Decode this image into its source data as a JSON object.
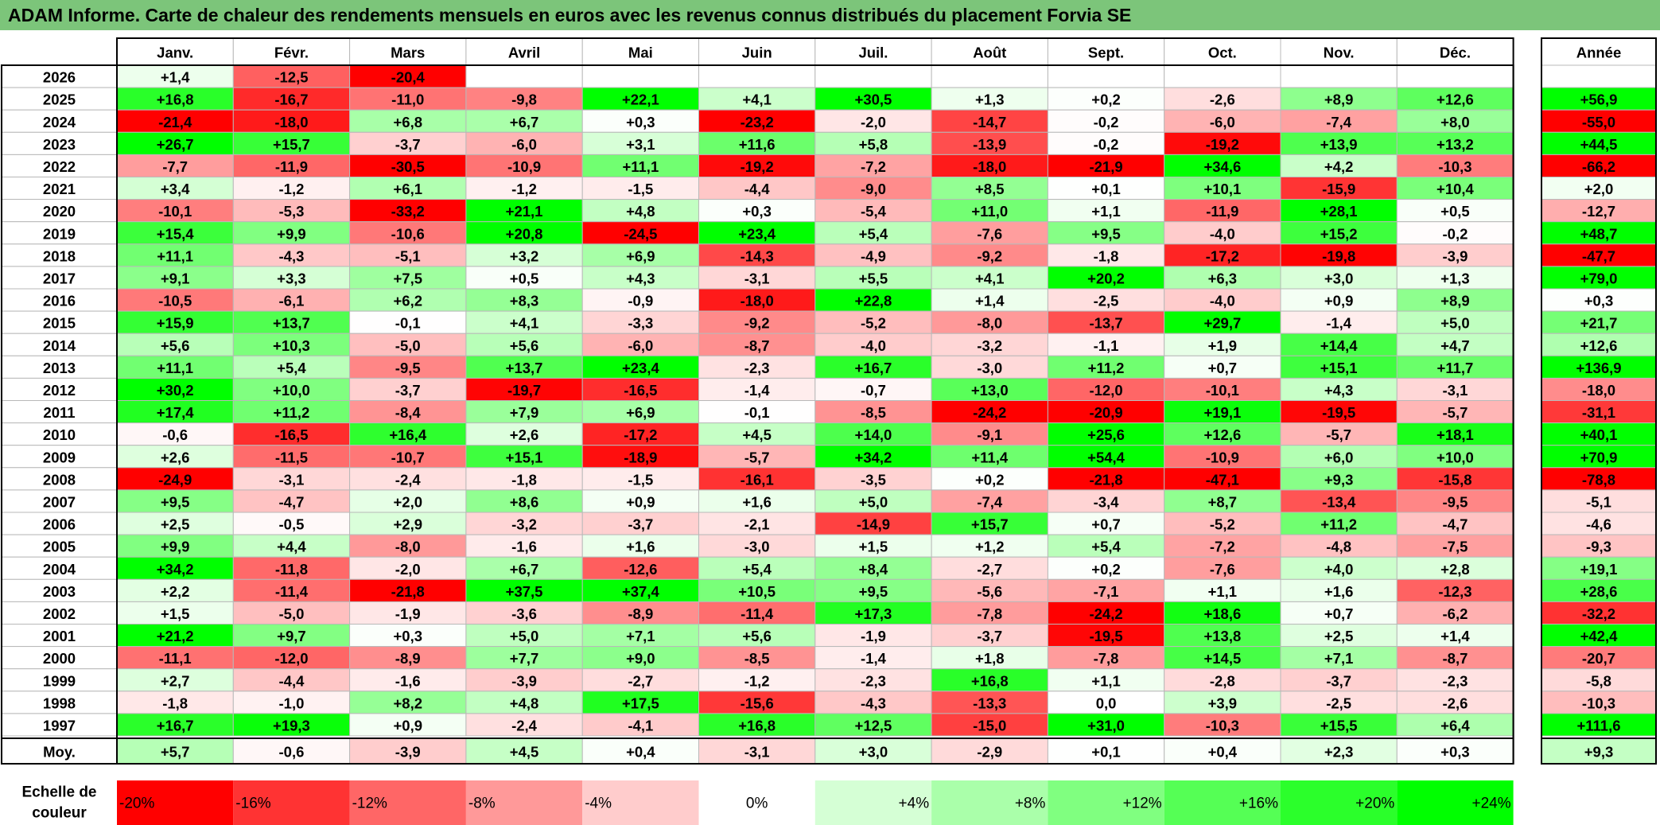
{
  "title": "ADAM Informe. Carte de chaleur des rendements mensuels en euros avec les revenus connus distribués du placement Forvia SE",
  "chart_data": {
    "type": "heatmap",
    "columns": [
      "Janv.",
      "Févr.",
      "Mars",
      "Avril",
      "Mai",
      "Juin",
      "Juil.",
      "Août",
      "Sept.",
      "Oct.",
      "Nov.",
      "Déc."
    ],
    "annual_header": "Année",
    "rows": [
      {
        "year": "2026",
        "months": [
          "+1,4",
          "-12,5",
          "-20,4",
          "",
          "",
          "",
          "",
          "",
          "",
          "",
          "",
          ""
        ],
        "annual": ""
      },
      {
        "year": "2025",
        "months": [
          "+16,8",
          "-16,7",
          "-11,0",
          "-9,8",
          "+22,1",
          "+4,1",
          "+30,5",
          "+1,3",
          "+0,2",
          "-2,6",
          "+8,9",
          "+12,6"
        ],
        "annual": "+56,9"
      },
      {
        "year": "2024",
        "months": [
          "-21,4",
          "-18,0",
          "+6,8",
          "+6,7",
          "+0,3",
          "-23,2",
          "-2,0",
          "-14,7",
          "-0,2",
          "-6,0",
          "-7,4",
          "+8,0"
        ],
        "annual": "-55,0"
      },
      {
        "year": "2023",
        "months": [
          "+26,7",
          "+15,7",
          "-3,7",
          "-6,0",
          "+3,1",
          "+11,6",
          "+5,8",
          "-13,9",
          "-0,2",
          "-19,2",
          "+13,9",
          "+13,2"
        ],
        "annual": "+44,5"
      },
      {
        "year": "2022",
        "months": [
          "-7,7",
          "-11,9",
          "-30,5",
          "-10,9",
          "+11,1",
          "-19,2",
          "-7,2",
          "-18,0",
          "-21,9",
          "+34,6",
          "+4,2",
          "-10,3"
        ],
        "annual": "-66,2"
      },
      {
        "year": "2021",
        "months": [
          "+3,4",
          "-1,2",
          "+6,1",
          "-1,2",
          "-1,5",
          "-4,4",
          "-9,0",
          "+8,5",
          "+0,1",
          "+10,1",
          "-15,9",
          "+10,4"
        ],
        "annual": "+2,0"
      },
      {
        "year": "2020",
        "months": [
          "-10,1",
          "-5,3",
          "-33,2",
          "+21,1",
          "+4,8",
          "+0,3",
          "-5,4",
          "+11,0",
          "+1,1",
          "-11,9",
          "+28,1",
          "+0,5"
        ],
        "annual": "-12,7"
      },
      {
        "year": "2019",
        "months": [
          "+15,4",
          "+9,9",
          "-10,6",
          "+20,8",
          "-24,5",
          "+23,4",
          "+5,4",
          "-7,6",
          "+9,5",
          "-4,0",
          "+15,2",
          "-0,2"
        ],
        "annual": "+48,7"
      },
      {
        "year": "2018",
        "months": [
          "+11,1",
          "-4,3",
          "-5,1",
          "+3,2",
          "+6,9",
          "-14,3",
          "-4,9",
          "-9,2",
          "-1,8",
          "-17,2",
          "-19,8",
          "-3,9"
        ],
        "annual": "-47,7"
      },
      {
        "year": "2017",
        "months": [
          "+9,1",
          "+3,3",
          "+7,5",
          "+0,5",
          "+4,3",
          "-3,1",
          "+5,5",
          "+4,1",
          "+20,2",
          "+6,3",
          "+3,0",
          "+1,3"
        ],
        "annual": "+79,0"
      },
      {
        "year": "2016",
        "months": [
          "-10,5",
          "-6,1",
          "+6,2",
          "+8,3",
          "-0,9",
          "-18,0",
          "+22,8",
          "+1,4",
          "-2,5",
          "-4,0",
          "+0,9",
          "+8,9"
        ],
        "annual": "+0,3"
      },
      {
        "year": "2015",
        "months": [
          "+15,9",
          "+13,7",
          "-0,1",
          "+4,1",
          "-3,3",
          "-9,2",
          "-5,2",
          "-8,0",
          "-13,7",
          "+29,7",
          "-1,4",
          "+5,0"
        ],
        "annual": "+21,7"
      },
      {
        "year": "2014",
        "months": [
          "+5,6",
          "+10,3",
          "-5,0",
          "+5,6",
          "-6,0",
          "-8,7",
          "-4,0",
          "-3,2",
          "-1,1",
          "+1,9",
          "+14,4",
          "+4,7"
        ],
        "annual": "+12,6"
      },
      {
        "year": "2013",
        "months": [
          "+11,1",
          "+5,4",
          "-9,5",
          "+13,7",
          "+23,4",
          "-2,3",
          "+16,7",
          "-3,0",
          "+11,2",
          "+0,7",
          "+15,1",
          "+11,7"
        ],
        "annual": "+136,9"
      },
      {
        "year": "2012",
        "months": [
          "+30,2",
          "+10,0",
          "-3,7",
          "-19,7",
          "-16,5",
          "-1,4",
          "-0,7",
          "+13,0",
          "-12,0",
          "-10,1",
          "+4,3",
          "-3,1"
        ],
        "annual": "-18,0"
      },
      {
        "year": "2011",
        "months": [
          "+17,4",
          "+11,2",
          "-8,4",
          "+7,9",
          "+6,9",
          "-0,1",
          "-8,5",
          "-24,2",
          "-20,9",
          "+19,1",
          "-19,5",
          "-5,7"
        ],
        "annual": "-31,1"
      },
      {
        "year": "2010",
        "months": [
          "-0,6",
          "-16,5",
          "+16,4",
          "+2,6",
          "-17,2",
          "+4,5",
          "+14,0",
          "-9,1",
          "+25,6",
          "+12,6",
          "-5,7",
          "+18,1"
        ],
        "annual": "+40,1"
      },
      {
        "year": "2009",
        "months": [
          "+2,6",
          "-11,5",
          "-10,7",
          "+15,1",
          "-18,9",
          "-5,7",
          "+34,2",
          "+11,4",
          "+54,4",
          "-10,9",
          "+6,0",
          "+10,0"
        ],
        "annual": "+70,9"
      },
      {
        "year": "2008",
        "months": [
          "-24,9",
          "-3,1",
          "-2,4",
          "-1,8",
          "-1,5",
          "-16,1",
          "-3,5",
          "+0,2",
          "-21,8",
          "-47,1",
          "+9,3",
          "-15,8"
        ],
        "annual": "-78,8"
      },
      {
        "year": "2007",
        "months": [
          "+9,5",
          "-4,7",
          "+2,0",
          "+8,6",
          "+0,9",
          "+1,6",
          "+5,0",
          "-7,4",
          "-3,4",
          "+8,7",
          "-13,4",
          "-9,5"
        ],
        "annual": "-5,1"
      },
      {
        "year": "2006",
        "months": [
          "+2,5",
          "-0,5",
          "+2,9",
          "-3,2",
          "-3,7",
          "-2,1",
          "-14,9",
          "+15,7",
          "+0,7",
          "-5,2",
          "+11,2",
          "-4,7"
        ],
        "annual": "-4,6"
      },
      {
        "year": "2005",
        "months": [
          "+9,9",
          "+4,4",
          "-8,0",
          "-1,6",
          "+1,6",
          "-3,0",
          "+1,5",
          "+1,2",
          "+5,4",
          "-7,2",
          "-4,8",
          "-7,5"
        ],
        "annual": "-9,3"
      },
      {
        "year": "2004",
        "months": [
          "+34,2",
          "-11,8",
          "-2,0",
          "+6,7",
          "-12,6",
          "+5,4",
          "+8,4",
          "-2,7",
          "+0,2",
          "-7,6",
          "+4,0",
          "+2,8"
        ],
        "annual": "+19,1"
      },
      {
        "year": "2003",
        "months": [
          "+2,2",
          "-11,4",
          "-21,8",
          "+37,5",
          "+37,4",
          "+10,5",
          "+9,5",
          "-5,6",
          "-7,1",
          "+1,1",
          "+1,6",
          "-12,3"
        ],
        "annual": "+28,6"
      },
      {
        "year": "2002",
        "months": [
          "+1,5",
          "-5,0",
          "-1,9",
          "-3,6",
          "-8,9",
          "-11,4",
          "+17,3",
          "-7,8",
          "-24,2",
          "+18,6",
          "+0,7",
          "-6,2"
        ],
        "annual": "-32,2"
      },
      {
        "year": "2001",
        "months": [
          "+21,2",
          "+9,7",
          "+0,3",
          "+5,0",
          "+7,1",
          "+5,6",
          "-1,9",
          "-3,7",
          "-19,5",
          "+13,8",
          "+2,5",
          "+1,4"
        ],
        "annual": "+42,4"
      },
      {
        "year": "2000",
        "months": [
          "-11,1",
          "-12,0",
          "-8,9",
          "+7,7",
          "+9,0",
          "-8,5",
          "-1,4",
          "+1,8",
          "-7,8",
          "+14,5",
          "+7,1",
          "-8,7"
        ],
        "annual": "-20,7"
      },
      {
        "year": "1999",
        "months": [
          "+2,7",
          "-4,4",
          "-1,6",
          "-3,9",
          "-2,7",
          "-1,2",
          "-2,3",
          "+16,8",
          "+1,1",
          "-2,8",
          "-3,7",
          "-2,3"
        ],
        "annual": "-5,8"
      },
      {
        "year": "1998",
        "months": [
          "-1,8",
          "-1,0",
          "+8,2",
          "+4,8",
          "+17,5",
          "-15,6",
          "-4,3",
          "-13,3",
          "0,0",
          "+3,9",
          "-2,5",
          "-2,6"
        ],
        "annual": "-10,3"
      },
      {
        "year": "1997",
        "months": [
          "+16,7",
          "+19,3",
          "+0,9",
          "-2,4",
          "-4,1",
          "+16,8",
          "+12,5",
          "-15,0",
          "+31,0",
          "-10,3",
          "+15,5",
          "+6,4"
        ],
        "annual": "+111,6"
      }
    ],
    "average": {
      "label": "Moy.",
      "months": [
        "+5,7",
        "-0,6",
        "-3,9",
        "+4,5",
        "+0,4",
        "-3,1",
        "+3,0",
        "-2,9",
        "+0,1",
        "+0,4",
        "+2,3",
        "+0,3"
      ],
      "annual": "+9,3"
    },
    "scale": {
      "label_line1": "Echelle de",
      "label_line2": "couleur",
      "steps": [
        "-20%",
        "-16%",
        "-12%",
        "-8%",
        "-4%",
        "0%",
        "+4%",
        "+8%",
        "+12%",
        "+16%",
        "+20%",
        "+24%"
      ]
    },
    "colors": {
      "negative_max": "#ff0000",
      "neutral": "#ffffff",
      "positive_max": "#00ff00",
      "title_bar": "#7cc57a",
      "grid": "#b8b8b8",
      "border": "#000000"
    }
  }
}
